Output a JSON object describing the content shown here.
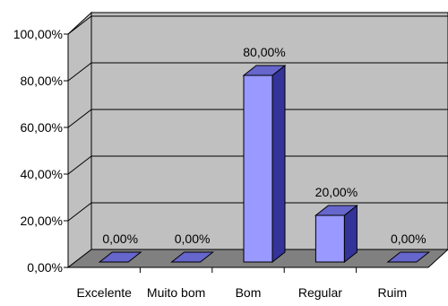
{
  "chart_data": {
    "type": "bar",
    "title": "",
    "xlabel": "",
    "ylabel": "",
    "categories": [
      "Excelente",
      "Muito bom",
      "Bom",
      "Regular",
      "Ruim"
    ],
    "values": [
      0,
      0,
      80,
      20,
      0
    ],
    "data_labels": [
      "0,00%",
      "0,00%",
      "80,00%",
      "20,00%",
      "0,00%"
    ],
    "y_ticks": [
      0,
      20,
      40,
      60,
      80,
      100
    ],
    "y_tick_labels": [
      "0,00%",
      "20,00%",
      "40,00%",
      "60,00%",
      "80,00%",
      "100,00%"
    ],
    "ylim": [
      0,
      100
    ],
    "grid": true,
    "legend": "none",
    "style": "3d-column",
    "colors": {
      "bar_front": "#9999ff",
      "bar_top": "#6666cc",
      "bar_side": "#333399",
      "wall": "#c0c0c0",
      "floor": "#808080",
      "grid": "#000000"
    }
  }
}
